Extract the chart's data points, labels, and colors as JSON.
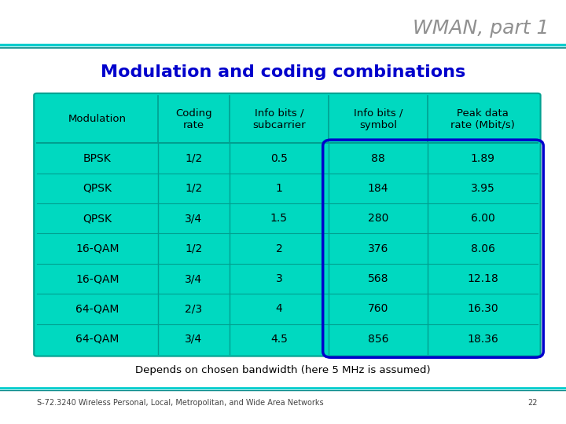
{
  "title": "WMAN, part 1",
  "subtitle": "Modulation and coding combinations",
  "table_bg": "#00D9C0",
  "border_color": "#00A090",
  "col_headers": [
    "Modulation",
    "Coding\nrate",
    "Info bits /\nsubcarrier",
    "Info bits /\nsymbol",
    "Peak data\nrate (Mbit/s)"
  ],
  "rows": [
    [
      "BPSK",
      "1/2",
      "0.5",
      "88",
      "1.89"
    ],
    [
      "QPSK",
      "1/2",
      "1",
      "184",
      "3.95"
    ],
    [
      "QPSK",
      "3/4",
      "1.5",
      "280",
      "6.00"
    ],
    [
      "16-QAM",
      "1/2",
      "2",
      "376",
      "8.06"
    ],
    [
      "16-QAM",
      "3/4",
      "3",
      "568",
      "12.18"
    ],
    [
      "64-QAM",
      "2/3",
      "4",
      "760",
      "16.30"
    ],
    [
      "64-QAM",
      "3/4",
      "4.5",
      "856",
      "18.36"
    ]
  ],
  "footnote": "Depends on chosen bandwidth (here 5 MHz is assumed)",
  "footer": "S-72.3240 Wireless Personal, Local, Metropolitan, and Wide Area Networks",
  "page_num": "22",
  "title_color": "#909090",
  "subtitle_color": "#0000CC",
  "text_color": "#000000",
  "circle_color": "#0000CC",
  "bg_color": "#FFFFFF",
  "top_line1_color": "#00CCCC",
  "top_line2_color": "#008888",
  "bot_line1_color": "#00CCCC",
  "bot_line2_color": "#008888"
}
